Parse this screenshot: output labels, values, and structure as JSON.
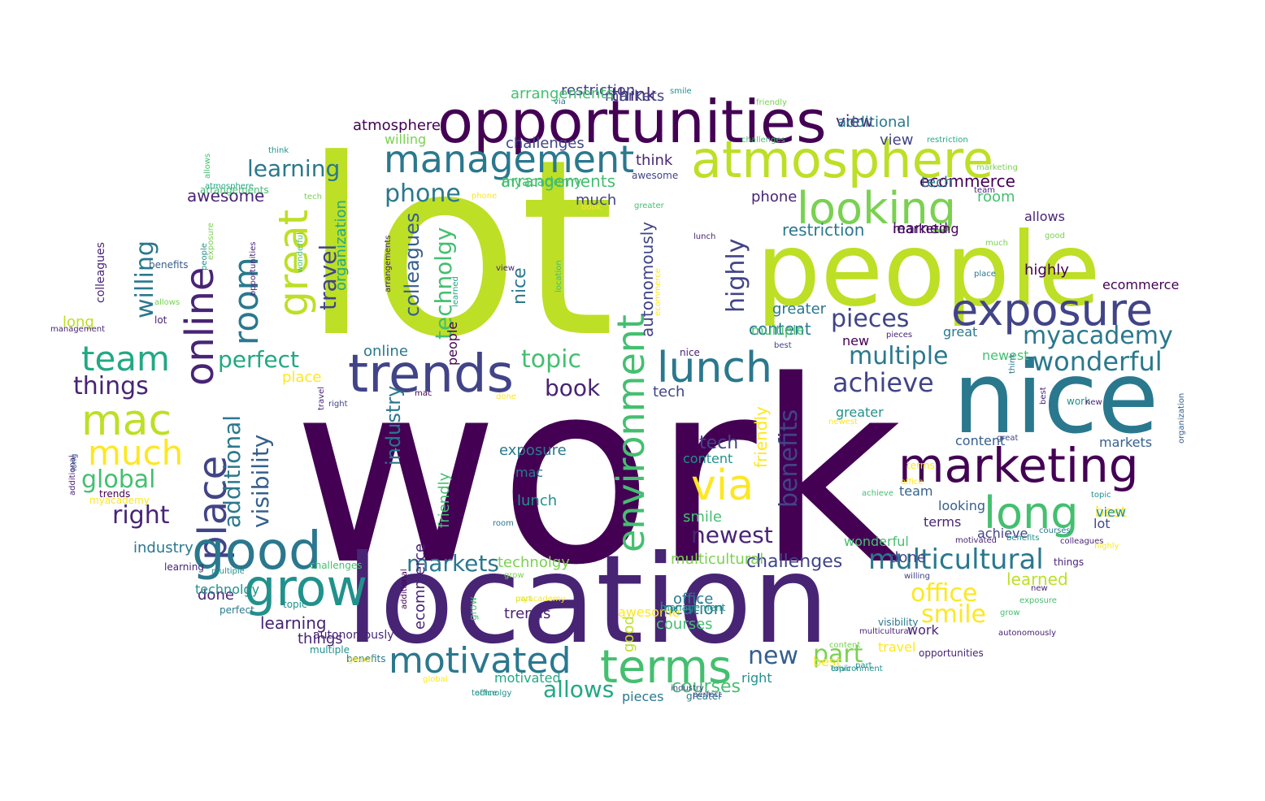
{
  "palette": {
    "v1": "#440154",
    "v2": "#482475",
    "v3": "#414487",
    "v4": "#355f8d",
    "v5": "#2a788e",
    "v6": "#21918c",
    "v7": "#22a884",
    "v8": "#44bf70",
    "v9": "#7ad151",
    "v10": "#bddf26",
    "v11": "#fde725"
  },
  "words": [
    {
      "text": "work",
      "color": "v1"
    },
    {
      "text": "lot",
      "color": "v10"
    },
    {
      "text": "location",
      "color": "v2"
    },
    {
      "text": "people",
      "color": "v10"
    },
    {
      "text": "nice",
      "color": "v5"
    },
    {
      "text": "opportunities",
      "color": "v1"
    },
    {
      "text": "trends",
      "color": "v3"
    },
    {
      "text": "atmosphere",
      "color": "v10"
    },
    {
      "text": "exposure",
      "color": "v3"
    },
    {
      "text": "marketing",
      "color": "v1"
    },
    {
      "text": "management",
      "color": "v5"
    },
    {
      "text": "environment",
      "color": "v8"
    },
    {
      "text": "online",
      "color": "v2"
    },
    {
      "text": "place",
      "color": "v3"
    },
    {
      "text": "good",
      "color": "v5"
    },
    {
      "text": "grow",
      "color": "v6"
    },
    {
      "text": "looking",
      "color": "v9"
    },
    {
      "text": "lunch",
      "color": "v5"
    },
    {
      "text": "motivated",
      "color": "v5"
    },
    {
      "text": "terms",
      "color": "v8"
    },
    {
      "text": "long",
      "color": "v8"
    },
    {
      "text": "via",
      "color": "v11"
    },
    {
      "text": "room",
      "color": "v5"
    },
    {
      "text": "great",
      "color": "v10"
    },
    {
      "text": "mac",
      "color": "v10"
    },
    {
      "text": "team",
      "color": "v7"
    },
    {
      "text": "much",
      "color": "v11"
    },
    {
      "text": "multicultural",
      "color": "v5"
    },
    {
      "text": "newest",
      "color": "v2"
    },
    {
      "text": "wonderful",
      "color": "v5"
    },
    {
      "text": "multiple",
      "color": "v5"
    },
    {
      "text": "achieve",
      "color": "v3"
    },
    {
      "text": "myacademy",
      "color": "v5"
    },
    {
      "text": "pieces",
      "color": "v3"
    },
    {
      "text": "benefits",
      "color": "v3"
    },
    {
      "text": "highly",
      "color": "v3"
    },
    {
      "text": "learning",
      "color": "v5"
    },
    {
      "text": "phone",
      "color": "v5"
    },
    {
      "text": "global",
      "color": "v8"
    },
    {
      "text": "things",
      "color": "v2"
    },
    {
      "text": "right",
      "color": "v2"
    },
    {
      "text": "perfect",
      "color": "v7"
    },
    {
      "text": "topic",
      "color": "v8"
    },
    {
      "text": "book",
      "color": "v2"
    },
    {
      "text": "willing",
      "color": "v5"
    },
    {
      "text": "travel",
      "color": "v3"
    },
    {
      "text": "visibility",
      "color": "v4"
    },
    {
      "text": "additional",
      "color": "v5"
    },
    {
      "text": "colleagues",
      "color": "v4"
    },
    {
      "text": "technolgy",
      "color": "v8"
    },
    {
      "text": "office",
      "color": "v11"
    },
    {
      "text": "smile",
      "color": "v11"
    },
    {
      "text": "part",
      "color": "v9"
    },
    {
      "text": "new",
      "color": "v4"
    },
    {
      "text": "allows",
      "color": "v7"
    },
    {
      "text": "markets",
      "color": "v5"
    },
    {
      "text": "challenges",
      "color": "v3"
    },
    {
      "text": "industry",
      "color": "v5"
    },
    {
      "text": "courses",
      "color": "v8"
    },
    {
      "text": "awesome",
      "color": "v2"
    },
    {
      "text": "restriction",
      "color": "v5"
    },
    {
      "text": "ecommerce",
      "color": "v1"
    },
    {
      "text": "arrangements",
      "color": "v8"
    },
    {
      "text": "autonomously",
      "color": "v3"
    },
    {
      "text": "content",
      "color": "v5"
    },
    {
      "text": "tech",
      "color": "v3"
    },
    {
      "text": "friendly",
      "color": "v11"
    },
    {
      "text": "think",
      "color": "v2"
    },
    {
      "text": "view",
      "color": "v2"
    },
    {
      "text": "organization",
      "color": "v7"
    },
    {
      "text": "learned",
      "color": "v10"
    },
    {
      "text": "done",
      "color": "v3"
    },
    {
      "text": "greater",
      "color": "v5"
    },
    {
      "text": "best",
      "color": "v11"
    },
    {
      "text": "atmosphere",
      "color": "v1"
    },
    {
      "text": "exposure",
      "color": "v5"
    },
    {
      "text": "lunch",
      "color": "v6"
    },
    {
      "text": "mac",
      "color": "v5"
    },
    {
      "text": "content",
      "color": "v6"
    },
    {
      "text": "tech",
      "color": "v3"
    },
    {
      "text": "smile",
      "color": "v8"
    },
    {
      "text": "multicultural",
      "color": "v9"
    },
    {
      "text": "location",
      "color": "v5"
    },
    {
      "text": "office",
      "color": "v5"
    },
    {
      "text": "courses",
      "color": "v8"
    },
    {
      "text": "trends",
      "color": "v2"
    },
    {
      "text": "learning",
      "color": "v2"
    },
    {
      "text": "things",
      "color": "v2"
    },
    {
      "text": "done",
      "color": "v2"
    },
    {
      "text": "industry",
      "color": "v5"
    },
    {
      "text": "long",
      "color": "v10"
    },
    {
      "text": "place",
      "color": "v11"
    },
    {
      "text": "online",
      "color": "v5"
    },
    {
      "text": "people",
      "color": "v1"
    },
    {
      "text": "nice",
      "color": "v5"
    },
    {
      "text": "ecommerce",
      "color": "v2"
    },
    {
      "text": "good",
      "color": "v10"
    },
    {
      "text": "friendly",
      "color": "v8"
    },
    {
      "text": "technolgy",
      "color": "v9"
    },
    {
      "text": "willing",
      "color": "v9"
    },
    {
      "text": "learned",
      "color": "v2"
    },
    {
      "text": "challenges",
      "color": "v3"
    },
    {
      "text": "myacademy",
      "color": "v8"
    },
    {
      "text": "additional",
      "color": "v5"
    },
    {
      "text": "markets",
      "color": "v3"
    },
    {
      "text": "restriction",
      "color": "v3"
    },
    {
      "text": "arrangements",
      "color": "v8"
    },
    {
      "text": "view",
      "color": "v3"
    },
    {
      "text": "think",
      "color": "v2"
    },
    {
      "text": "much",
      "color": "v3"
    },
    {
      "text": "phone",
      "color": "v2"
    },
    {
      "text": "tech",
      "color": "v5"
    },
    {
      "text": "room",
      "color": "v8"
    },
    {
      "text": "allows",
      "color": "v2"
    },
    {
      "text": "highly",
      "color": "v1"
    },
    {
      "text": "ecommerce",
      "color": "v1"
    },
    {
      "text": "marketing",
      "color": "v1"
    },
    {
      "text": "multiple",
      "color": "v8"
    },
    {
      "text": "new",
      "color": "v1"
    },
    {
      "text": "great",
      "color": "v5"
    },
    {
      "text": "newest",
      "color": "v8"
    },
    {
      "text": "markets",
      "color": "v4"
    },
    {
      "text": "greater",
      "color": "v6"
    },
    {
      "text": "content",
      "color": "v4"
    },
    {
      "text": "team",
      "color": "v4"
    },
    {
      "text": "looking",
      "color": "v4"
    },
    {
      "text": "terms",
      "color": "v2"
    },
    {
      "text": "wonderful",
      "color": "v8"
    },
    {
      "text": "view",
      "color": "v6"
    },
    {
      "text": "lot",
      "color": "v3"
    },
    {
      "text": "achieve",
      "color": "v3"
    },
    {
      "text": "work",
      "color": "v2"
    },
    {
      "text": "travel",
      "color": "v11"
    },
    {
      "text": "right",
      "color": "v6"
    },
    {
      "text": "best",
      "color": "v11"
    },
    {
      "text": "environment",
      "color": "v6"
    },
    {
      "text": "pieces",
      "color": "v5"
    },
    {
      "text": "greater",
      "color": "v5"
    },
    {
      "text": "motivated",
      "color": "v7"
    },
    {
      "text": "awesome",
      "color": "v11"
    },
    {
      "text": "management",
      "color": "v6"
    },
    {
      "text": "part",
      "color": "v10"
    },
    {
      "text": "grow",
      "color": "v8"
    },
    {
      "text": "benefits",
      "color": "v5"
    },
    {
      "text": "global",
      "color": "v11"
    },
    {
      "text": "office",
      "color": "v6"
    },
    {
      "text": "challenges",
      "color": "v8"
    },
    {
      "text": "learning",
      "color": "v2"
    },
    {
      "text": "perfect",
      "color": "v5"
    },
    {
      "text": "technolgy",
      "color": "v6"
    },
    {
      "text": "autonomously",
      "color": "v2"
    },
    {
      "text": "multiple",
      "color": "v6"
    },
    {
      "text": "topic",
      "color": "v6"
    },
    {
      "text": "myacademy",
      "color": "v11"
    },
    {
      "text": "additional",
      "color": "v2"
    },
    {
      "text": "trends",
      "color": "v1"
    },
    {
      "text": "long",
      "color": "v4"
    },
    {
      "text": "management",
      "color": "v2"
    },
    {
      "text": "lot",
      "color": "v2"
    },
    {
      "text": "colleagues",
      "color": "v2"
    },
    {
      "text": "benefits",
      "color": "v4"
    },
    {
      "text": "arrangements",
      "color": "v8"
    },
    {
      "text": "atmosphere",
      "color": "v7"
    },
    {
      "text": "allows",
      "color": "v8"
    },
    {
      "text": "think",
      "color": "v6"
    },
    {
      "text": "tech",
      "color": "v9"
    },
    {
      "text": "people",
      "color": "v6"
    },
    {
      "text": "exposure",
      "color": "v9"
    },
    {
      "text": "opportunities",
      "color": "v2"
    },
    {
      "text": "wonderful",
      "color": "v8"
    },
    {
      "text": "right",
      "color": "v3"
    },
    {
      "text": "travel",
      "color": "v2"
    },
    {
      "text": "arrangements",
      "color": "v2"
    },
    {
      "text": "learned",
      "color": "v7"
    },
    {
      "text": "location",
      "color": "v8"
    },
    {
      "text": "view",
      "color": "v2"
    },
    {
      "text": "phone",
      "color": "v11"
    },
    {
      "text": "book",
      "color": "v11"
    },
    {
      "text": "awesome",
      "color": "v3"
    },
    {
      "text": "greater",
      "color": "v8"
    },
    {
      "text": "smile",
      "color": "v6"
    },
    {
      "text": "via",
      "color": "v5"
    },
    {
      "text": "friendly",
      "color": "v9"
    },
    {
      "text": "challenges",
      "color": "v8"
    },
    {
      "text": "restriction",
      "color": "v7"
    },
    {
      "text": "team",
      "color": "v2"
    },
    {
      "text": "marketing",
      "color": "v9"
    },
    {
      "text": "good",
      "color": "v9"
    },
    {
      "text": "much",
      "color": "v9"
    },
    {
      "text": "place",
      "color": "v5"
    },
    {
      "text": "best",
      "color": "v2"
    },
    {
      "text": "work",
      "color": "v6"
    },
    {
      "text": "new",
      "color": "v2"
    },
    {
      "text": "organization",
      "color": "v4"
    },
    {
      "text": "think",
      "color": "v5"
    },
    {
      "text": "great",
      "color": "v3"
    },
    {
      "text": "newest",
      "color": "v11"
    },
    {
      "text": "best",
      "color": "v3"
    },
    {
      "text": "nice",
      "color": "v2"
    },
    {
      "text": "pieces",
      "color": "v2"
    },
    {
      "text": "lunch",
      "color": "v2"
    },
    {
      "text": "ecommerce",
      "color": "v11"
    },
    {
      "text": "visibility",
      "color": "v5"
    },
    {
      "text": "multicultural",
      "color": "v2"
    },
    {
      "text": "opportunities",
      "color": "v2"
    },
    {
      "text": "exposure",
      "color": "v8"
    },
    {
      "text": "grow",
      "color": "v8"
    },
    {
      "text": "colleagues",
      "color": "v2"
    },
    {
      "text": "benefits",
      "color": "v6"
    },
    {
      "text": "topic",
      "color": "v6"
    },
    {
      "text": "achieve",
      "color": "v8"
    },
    {
      "text": "terms",
      "color": "v11"
    },
    {
      "text": "office",
      "color": "v11"
    },
    {
      "text": "things",
      "color": "v2"
    },
    {
      "text": "willing",
      "color": "v3"
    },
    {
      "text": "highly",
      "color": "v11"
    },
    {
      "text": "courses",
      "color": "v5"
    },
    {
      "text": "motivated",
      "color": "v2"
    },
    {
      "text": "new",
      "color": "v2"
    },
    {
      "text": "autonomously",
      "color": "v2"
    },
    {
      "text": "content",
      "color": "v9"
    },
    {
      "text": "part",
      "color": "v6"
    },
    {
      "text": "done",
      "color": "v11"
    },
    {
      "text": "mac",
      "color": "v1"
    },
    {
      "text": "room",
      "color": "v5"
    },
    {
      "text": "grow",
      "color": "v9"
    },
    {
      "text": "myacademy",
      "color": "v11"
    },
    {
      "text": "additional",
      "color": "v1"
    },
    {
      "text": "global",
      "color": "v11"
    },
    {
      "text": "technolgy",
      "color": "v6"
    },
    {
      "text": "perfect",
      "color": "v3"
    },
    {
      "text": "industry",
      "color": "v3"
    },
    {
      "text": "topic",
      "color": "v6"
    },
    {
      "text": "multiple",
      "color": "v6"
    },
    {
      "text": "allows",
      "color": "v9"
    },
    {
      "text": "atmosphere",
      "color": "v6"
    },
    {
      "text": "long",
      "color": "v4"
    },
    {
      "text": "trends",
      "color": "v1"
    },
    {
      "text": "autonomously",
      "color": "v1"
    },
    {
      "text": "place",
      "color": "v11"
    },
    {
      "text": "online",
      "color": "v8"
    },
    {
      "text": "restriction",
      "color": "v6"
    },
    {
      "text": "lot",
      "color": "v2"
    }
  ]
}
